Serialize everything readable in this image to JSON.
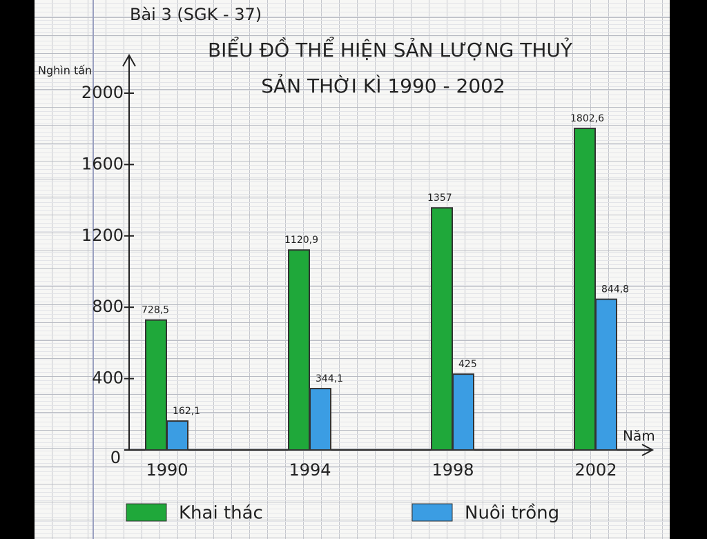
{
  "chart_data": {
    "type": "bar",
    "annotation": "Bài 3 (SGK - 37)",
    "title": [
      "BIỂU ĐỒ THỂ HIỆN SẢN LƯỢNG THUỶ",
      "SẢN THỜI KÌ 1990 - 2002"
    ],
    "y_label": "Nghìn tấn",
    "x_label": "Năm",
    "categories": [
      "1990",
      "1994",
      "1998",
      "2002"
    ],
    "series": [
      {
        "name": "Khai thác",
        "color": "#1fa83a",
        "values": [
          728.5,
          1120.9,
          1357,
          1802.6
        ],
        "value_labels": [
          "728,5",
          "1120,9",
          "1357",
          "1802,6"
        ]
      },
      {
        "name": "Nuôi trồng",
        "color": "#3b9de3",
        "values": [
          162.1,
          344.1,
          425,
          844.8
        ],
        "value_labels": [
          "162,1",
          "344,1",
          "425",
          "844,8"
        ]
      }
    ],
    "ylim": [
      0,
      2200
    ],
    "yticks": [
      0,
      400,
      800,
      1200,
      1600,
      2000
    ],
    "legend": "bottom"
  }
}
